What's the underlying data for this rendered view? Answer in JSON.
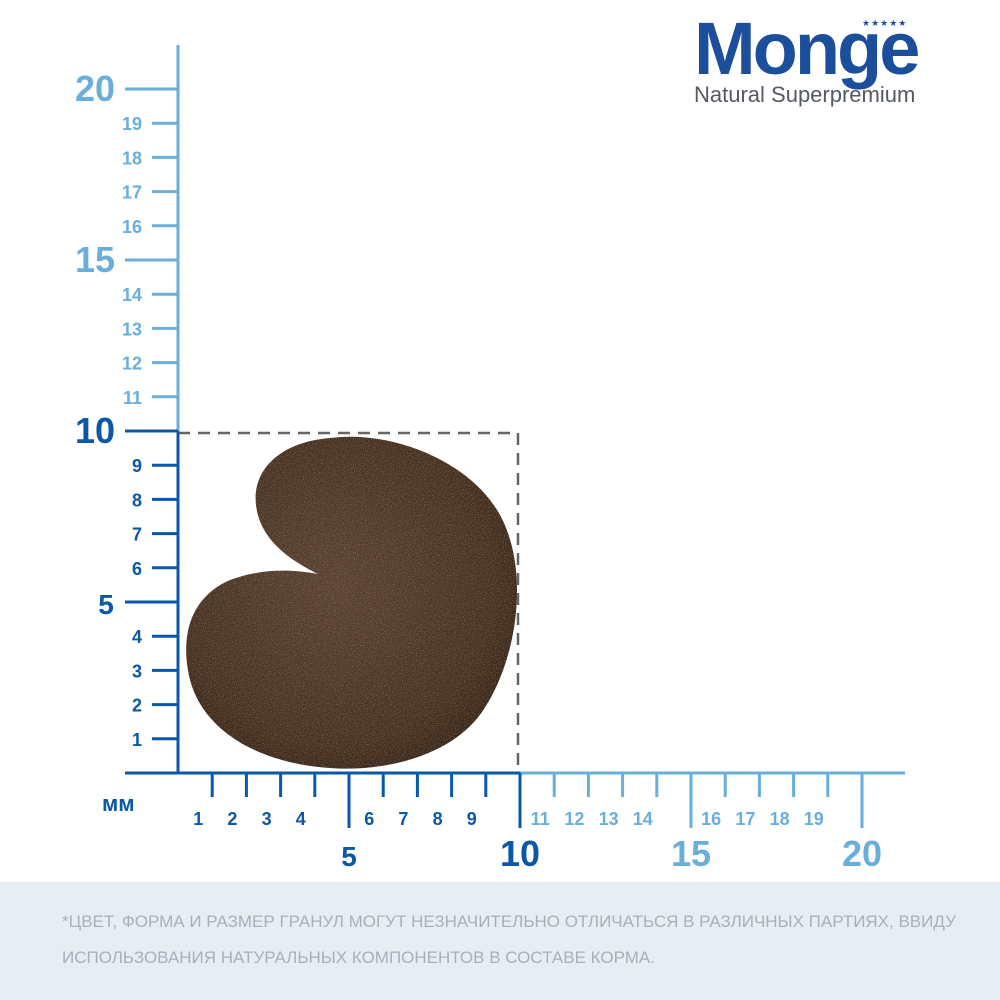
{
  "brand": {
    "name": "Monge",
    "tagline": "Natural Superpremium",
    "stars": "★★★★★",
    "color": "#1b4f9c"
  },
  "scale": {
    "unit": "мм",
    "max": 20,
    "highlight_max": 10,
    "color_dark": "#0a58a6",
    "color_light": "#6aaedb",
    "y_minor_labels_light": [
      "11",
      "12",
      "13",
      "14",
      "16",
      "17",
      "18",
      "19"
    ],
    "y_major_labels_light": [
      "15",
      "20"
    ],
    "y_minor_labels_dark": [
      "1",
      "2",
      "3",
      "4",
      "6",
      "7",
      "8",
      "9"
    ],
    "y_major_labels_dark": [
      "5",
      "10"
    ],
    "x_minor_labels_dark": [
      "1",
      "2",
      "3",
      "4",
      "6",
      "7",
      "8",
      "9"
    ],
    "x_major_labels_dark": [
      "5",
      "10"
    ],
    "x_minor_labels_light": [
      "11",
      "12",
      "13",
      "14",
      "16",
      "17",
      "18",
      "19"
    ],
    "x_major_labels_light": [
      "15",
      "20"
    ]
  },
  "kibble": {
    "color": "#4a3428",
    "width_mm": 10,
    "height_mm": 10
  },
  "footer": {
    "disclaimer": "*ЦВЕТ, ФОРМА И РАЗМЕР ГРАНУЛ МОГУТ НЕЗНАЧИТЕЛЬНО ОТЛИЧАТЬСЯ В РАЗЛИЧНЫХ ПАРТИЯХ, ВВИДУ ИСПОЛЬЗОВАНИЯ НАТУРАЛЬНЫХ КОМПОНЕНТОВ В СОСТАВЕ КОРМА."
  }
}
